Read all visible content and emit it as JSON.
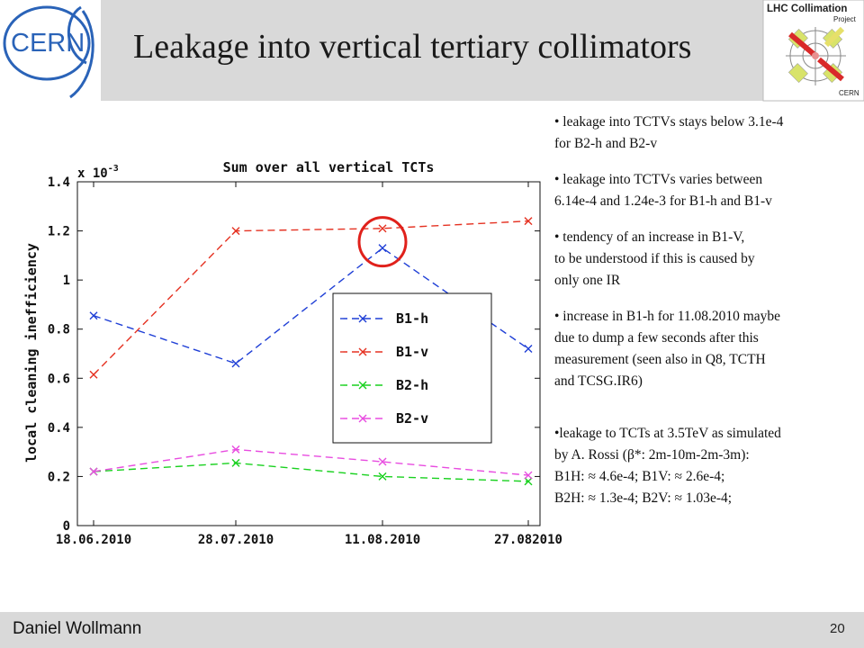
{
  "title": "Leakage into vertical tertiary collimators",
  "footer": {
    "author": "Daniel Wollmann",
    "page": "20"
  },
  "logos": {
    "cern": {
      "text": "CERN"
    },
    "lhc": {
      "line1": "LHC Collimation",
      "line2": "Project",
      "line3": "CERN"
    }
  },
  "bullets": [
    {
      "lines": [
        "• leakage into TCTVs stays below 3.1e-4",
        "for B2-h and B2-v"
      ]
    },
    {
      "lines": [
        "• leakage into TCTVs varies between",
        "6.14e-4 and 1.24e-3 for B1-h and B1-v"
      ]
    },
    {
      "lines": [
        "• tendency of an increase in B1-V,",
        "to be understood if this is caused by",
        "only one IR"
      ]
    },
    {
      "lines": [
        "• increase in B1-h for 11.08.2010 maybe",
        "due to dump a few seconds after this",
        "measurement (seen also in Q8, TCTH",
        "and TCSG.IR6)"
      ]
    },
    {
      "lines": [
        "•leakage to TCTs at 3.5TeV as simulated",
        "by A. Rossi (β*: 2m-10m-2m-3m):",
        "B1H: ≈ 4.6e-4; B1V: ≈ 2.6e-4;",
        "B2H: ≈ 1.3e-4; B2V: ≈ 1.03e-4;"
      ]
    }
  ],
  "chart_data": {
    "type": "line",
    "title": "Sum over all vertical TCTs",
    "ylabel": "local cleaning inefficiency",
    "xlabel": "",
    "scale_label": "x 10",
    "scale_exp": "-3",
    "categories": [
      "18.06.2010",
      "28.07.2010",
      "11.08.2010",
      "27.082010"
    ],
    "yticks": [
      "0",
      "0.2",
      "0.4",
      "0.6",
      "0.8",
      "1",
      "1.2",
      "1.4"
    ],
    "ylim": [
      0,
      1.4
    ],
    "grid": false,
    "legend_position": "center",
    "annotation": "red circle around B1-h at 11.08.2010",
    "series": [
      {
        "name": "B1-h",
        "color": "#1f3fd6",
        "values": [
          0.855,
          0.66,
          1.13,
          0.72
        ]
      },
      {
        "name": "B1-v",
        "color": "#e53222",
        "values": [
          0.615,
          1.2,
          1.21,
          1.24
        ]
      },
      {
        "name": "B2-h",
        "color": "#19d11f",
        "values": [
          0.22,
          0.255,
          0.2,
          0.18
        ]
      },
      {
        "name": "B2-v",
        "color": "#e84ce0",
        "values": [
          0.22,
          0.31,
          0.26,
          0.205
        ]
      }
    ],
    "highlight": {
      "series": 0,
      "point": 2,
      "color": "#e0211b"
    }
  }
}
